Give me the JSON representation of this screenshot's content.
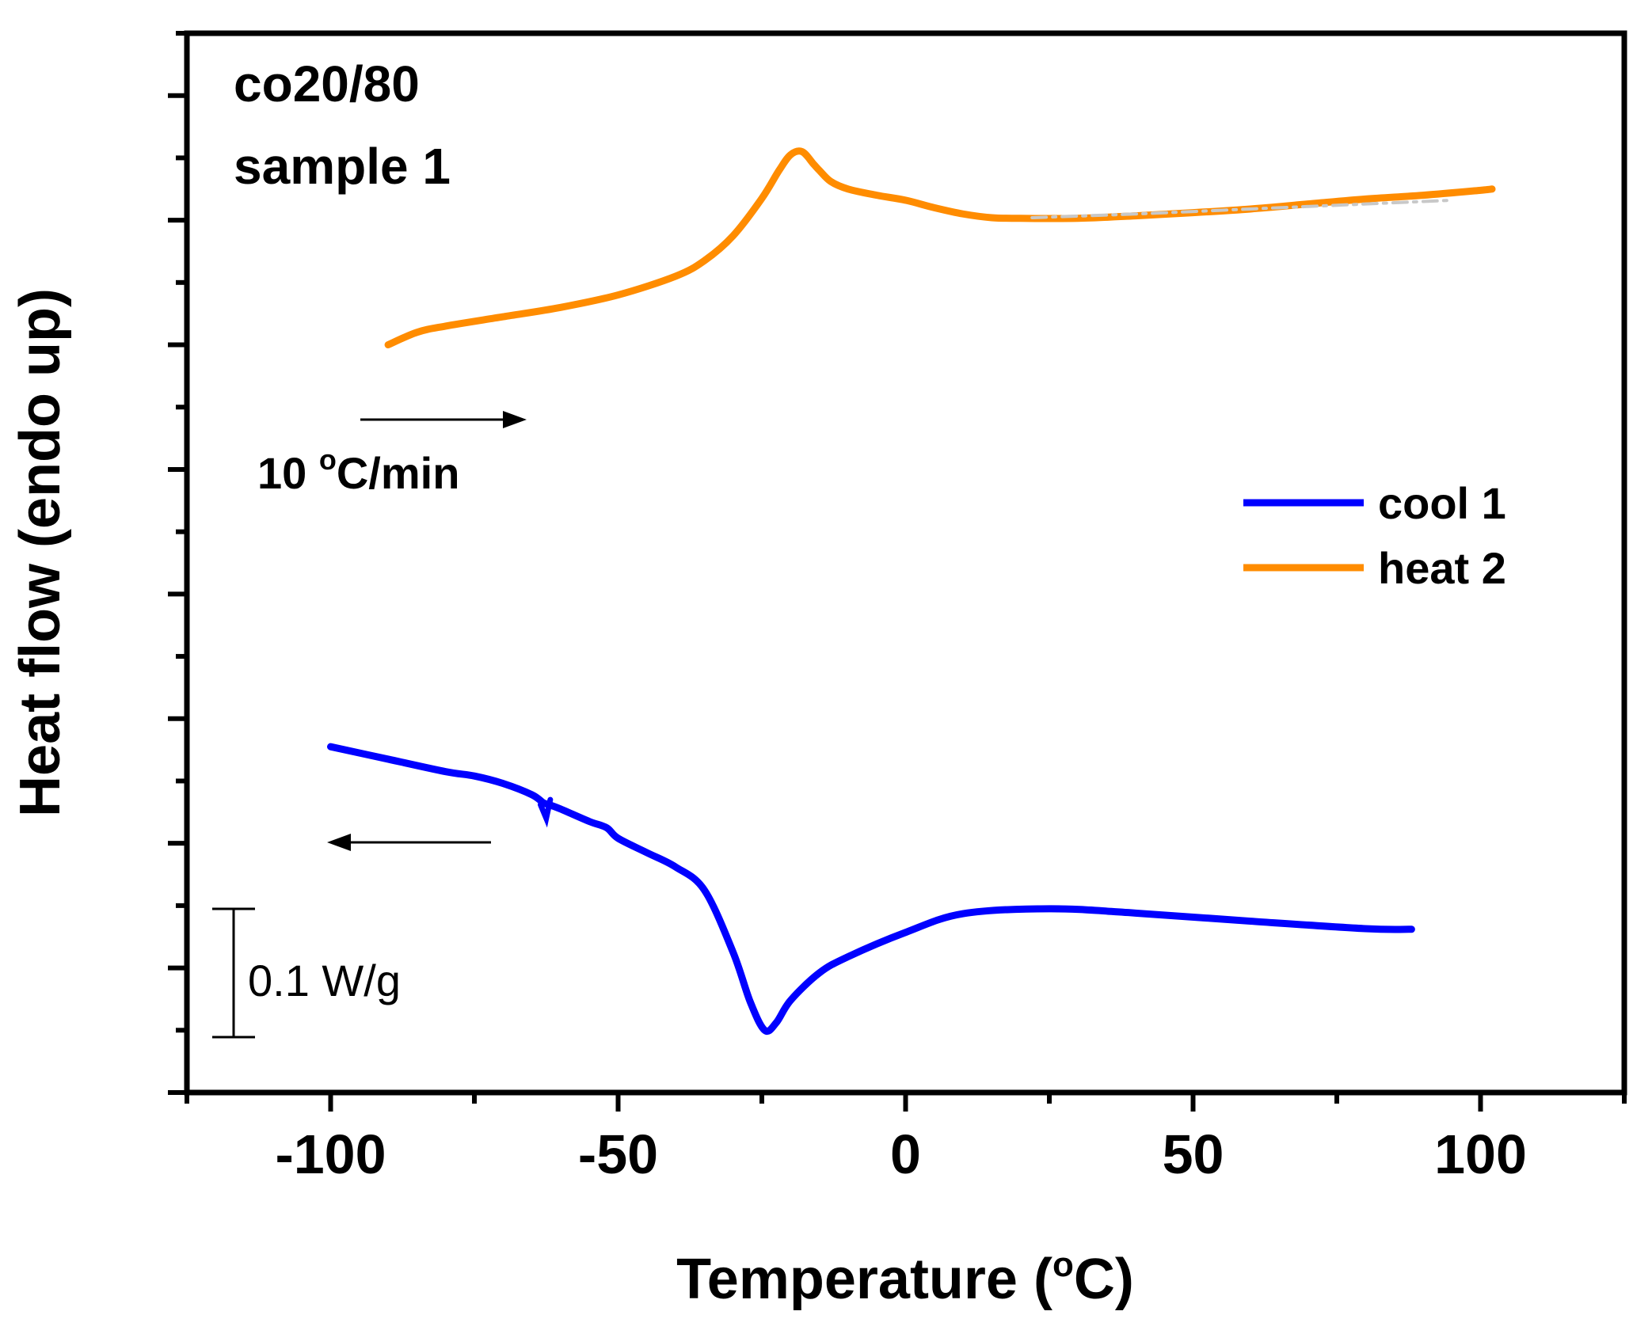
{
  "chart_data": {
    "type": "line",
    "xlabel": "Temperature (°C)",
    "xlabel_parts": {
      "before": "Temperature (",
      "sup": "o",
      "after": "C)"
    },
    "ylabel": "Heat flow (endo up)",
    "xlim": [
      -125,
      125
    ],
    "ylim": [
      0,
      1.7
    ],
    "x_ticks": [
      -100,
      -50,
      0,
      50,
      100
    ],
    "x_tick_labels": [
      "-100",
      "-50",
      "0",
      "50",
      "100"
    ],
    "grid": false,
    "legend_position": "right",
    "series": [
      {
        "name": "cool 1",
        "color": "#0000ff",
        "x": [
          88,
          80,
          60,
          40,
          25,
          10,
          0,
          -10,
          -15,
          -20,
          -22.5,
          -24.5,
          -27,
          -30,
          -35,
          -40,
          -45,
          -50,
          -52,
          -55,
          -60,
          -62,
          -63,
          -65,
          -70,
          -75,
          -80,
          -90,
          -100
        ],
        "y": [
          0.262,
          0.263,
          0.275,
          0.288,
          0.295,
          0.287,
          0.257,
          0.218,
          0.192,
          0.148,
          0.112,
          0.1,
          0.145,
          0.225,
          0.325,
          0.362,
          0.385,
          0.408,
          0.425,
          0.435,
          0.455,
          0.462,
          0.465,
          0.478,
          0.496,
          0.508,
          0.515,
          0.535,
          0.555
        ]
      },
      {
        "name": "heat 2",
        "color": "#ff8c00",
        "x": [
          -90,
          -85,
          -80,
          -70,
          -60,
          -50,
          -40,
          -35,
          -30,
          -25,
          -22,
          -20,
          -18,
          -16,
          -15,
          -13,
          -10,
          -5,
          0,
          5,
          10,
          15,
          20,
          30,
          40,
          50,
          60,
          70,
          80,
          90,
          100,
          102
        ],
        "y": [
          1.2,
          1.22,
          1.23,
          1.245,
          1.26,
          1.28,
          1.31,
          1.335,
          1.375,
          1.435,
          1.48,
          1.505,
          1.51,
          1.49,
          1.48,
          1.462,
          1.45,
          1.44,
          1.432,
          1.42,
          1.41,
          1.404,
          1.403,
          1.403,
          1.407,
          1.412,
          1.418,
          1.426,
          1.434,
          1.44,
          1.448,
          1.45
        ]
      },
      {
        "name": "baseline",
        "color": "#c8c8c8",
        "x": [
          22,
          40,
          60,
          80,
          95
        ],
        "y": [
          1.404,
          1.41,
          1.418,
          1.426,
          1.432
        ]
      }
    ],
    "annotations": {
      "sample_line1": "co20/80",
      "sample_line2": "sample 1",
      "rate": "10 °C/min",
      "rate_parts": {
        "before": "10 ",
        "sup": "o",
        "after": "C/min"
      },
      "scale_bar_label": "0.1 W/g",
      "scale_bar_value": 0.1
    }
  }
}
